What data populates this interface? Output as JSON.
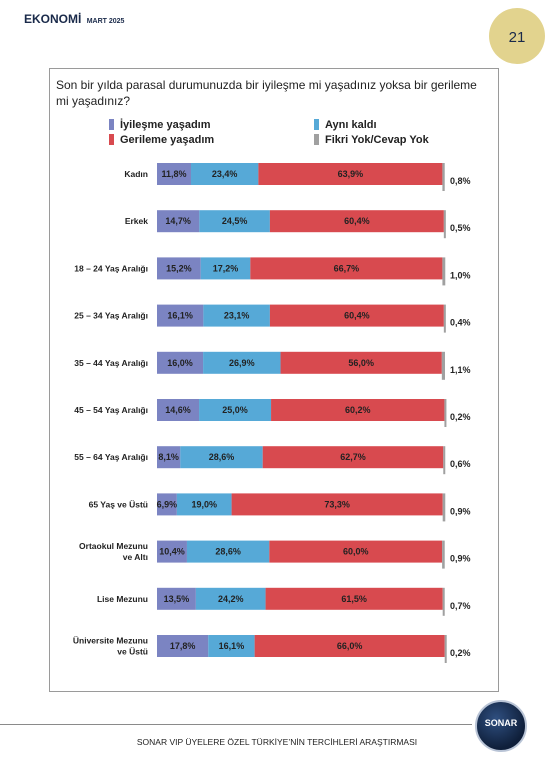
{
  "header": {
    "title": "EKONOMİ",
    "subtitle": "MART 2025"
  },
  "page_number": "21",
  "question": "Son bir yılda parasal durumunuzda bir iyileşme mi yaşadınız yoksa bir gerileme mi yaşadınız?",
  "legend": [
    {
      "label": "İyileşme yaşadım",
      "color": "#7b84c2"
    },
    {
      "label": "Aynı kaldı",
      "color": "#56a9d7"
    },
    {
      "label": "Gerileme yaşadım",
      "color": "#d84a4f"
    },
    {
      "label": "Fikri Yok/Cevap Yok",
      "color": "#a0a0a0"
    }
  ],
  "chart_data": {
    "type": "bar",
    "stacked": true,
    "orientation": "horizontal",
    "categories": [
      [
        "Kadın"
      ],
      [
        "Erkek"
      ],
      [
        "18 – 24 Yaş Aralığı"
      ],
      [
        "25 – 34 Yaş Aralığı"
      ],
      [
        "35 – 44 Yaş Aralığı"
      ],
      [
        "45 – 54 Yaş Aralığı"
      ],
      [
        "55 – 64 Yaş Aralığı"
      ],
      [
        "65 Yaş ve Üstü"
      ],
      [
        "Ortaokul Mezunu",
        "ve Altı"
      ],
      [
        "Lise Mezunu"
      ],
      [
        "Üniversite Mezunu",
        "ve Üstü"
      ]
    ],
    "series": [
      {
        "name": "İyileşme yaşadım",
        "color": "#7b84c2",
        "values": [
          11.8,
          14.7,
          15.2,
          16.1,
          16.0,
          14.6,
          8.1,
          6.9,
          10.4,
          13.5,
          17.8
        ],
        "labels": [
          "11,8%",
          "14,7%",
          "15,2%",
          "16,1%",
          "16,0%",
          "14,6%",
          "8,1%",
          "6,9%",
          "10,4%",
          "13,5%",
          "17,8%"
        ]
      },
      {
        "name": "Aynı kaldı",
        "color": "#56a9d7",
        "values": [
          23.4,
          24.5,
          17.2,
          23.1,
          26.9,
          25.0,
          28.6,
          19.0,
          28.6,
          24.2,
          16.1
        ],
        "labels": [
          "23,4%",
          "24,5%",
          "17,2%",
          "23,1%",
          "26,9%",
          "25,0%",
          "28,6%",
          "19,0%",
          "28,6%",
          "24,2%",
          "16,1%"
        ]
      },
      {
        "name": "Gerileme yaşadım",
        "color": "#d84a4f",
        "values": [
          63.9,
          60.4,
          66.7,
          60.4,
          56.0,
          60.2,
          62.7,
          73.3,
          60.0,
          61.5,
          66.0
        ],
        "labels": [
          "63,9%",
          "60,4%",
          "66,7%",
          "60,4%",
          "56,0%",
          "60,2%",
          "62,7%",
          "73,3%",
          "60,0%",
          "61,5%",
          "66,0%"
        ]
      },
      {
        "name": "Fikri Yok/Cevap Yok",
        "color": "#a0a0a0",
        "values": [
          0.8,
          0.5,
          1.0,
          0.4,
          1.1,
          0.2,
          0.6,
          0.9,
          0.9,
          0.7,
          0.2
        ],
        "labels": [
          "0,8%",
          "0,5%",
          "1,0%",
          "0,4%",
          "1,1%",
          "0,2%",
          "0,6%",
          "0,9%",
          "0,9%",
          "0,7%",
          "0,2%"
        ]
      }
    ],
    "xlim": [
      0,
      100
    ],
    "grid": false
  },
  "footer": {
    "text": "SONAR VIP ÜYELERE ÖZEL TÜRKİYE’NİN TERCİHLERİ ARAŞTIRMASI",
    "logo_text": "SONAR"
  }
}
